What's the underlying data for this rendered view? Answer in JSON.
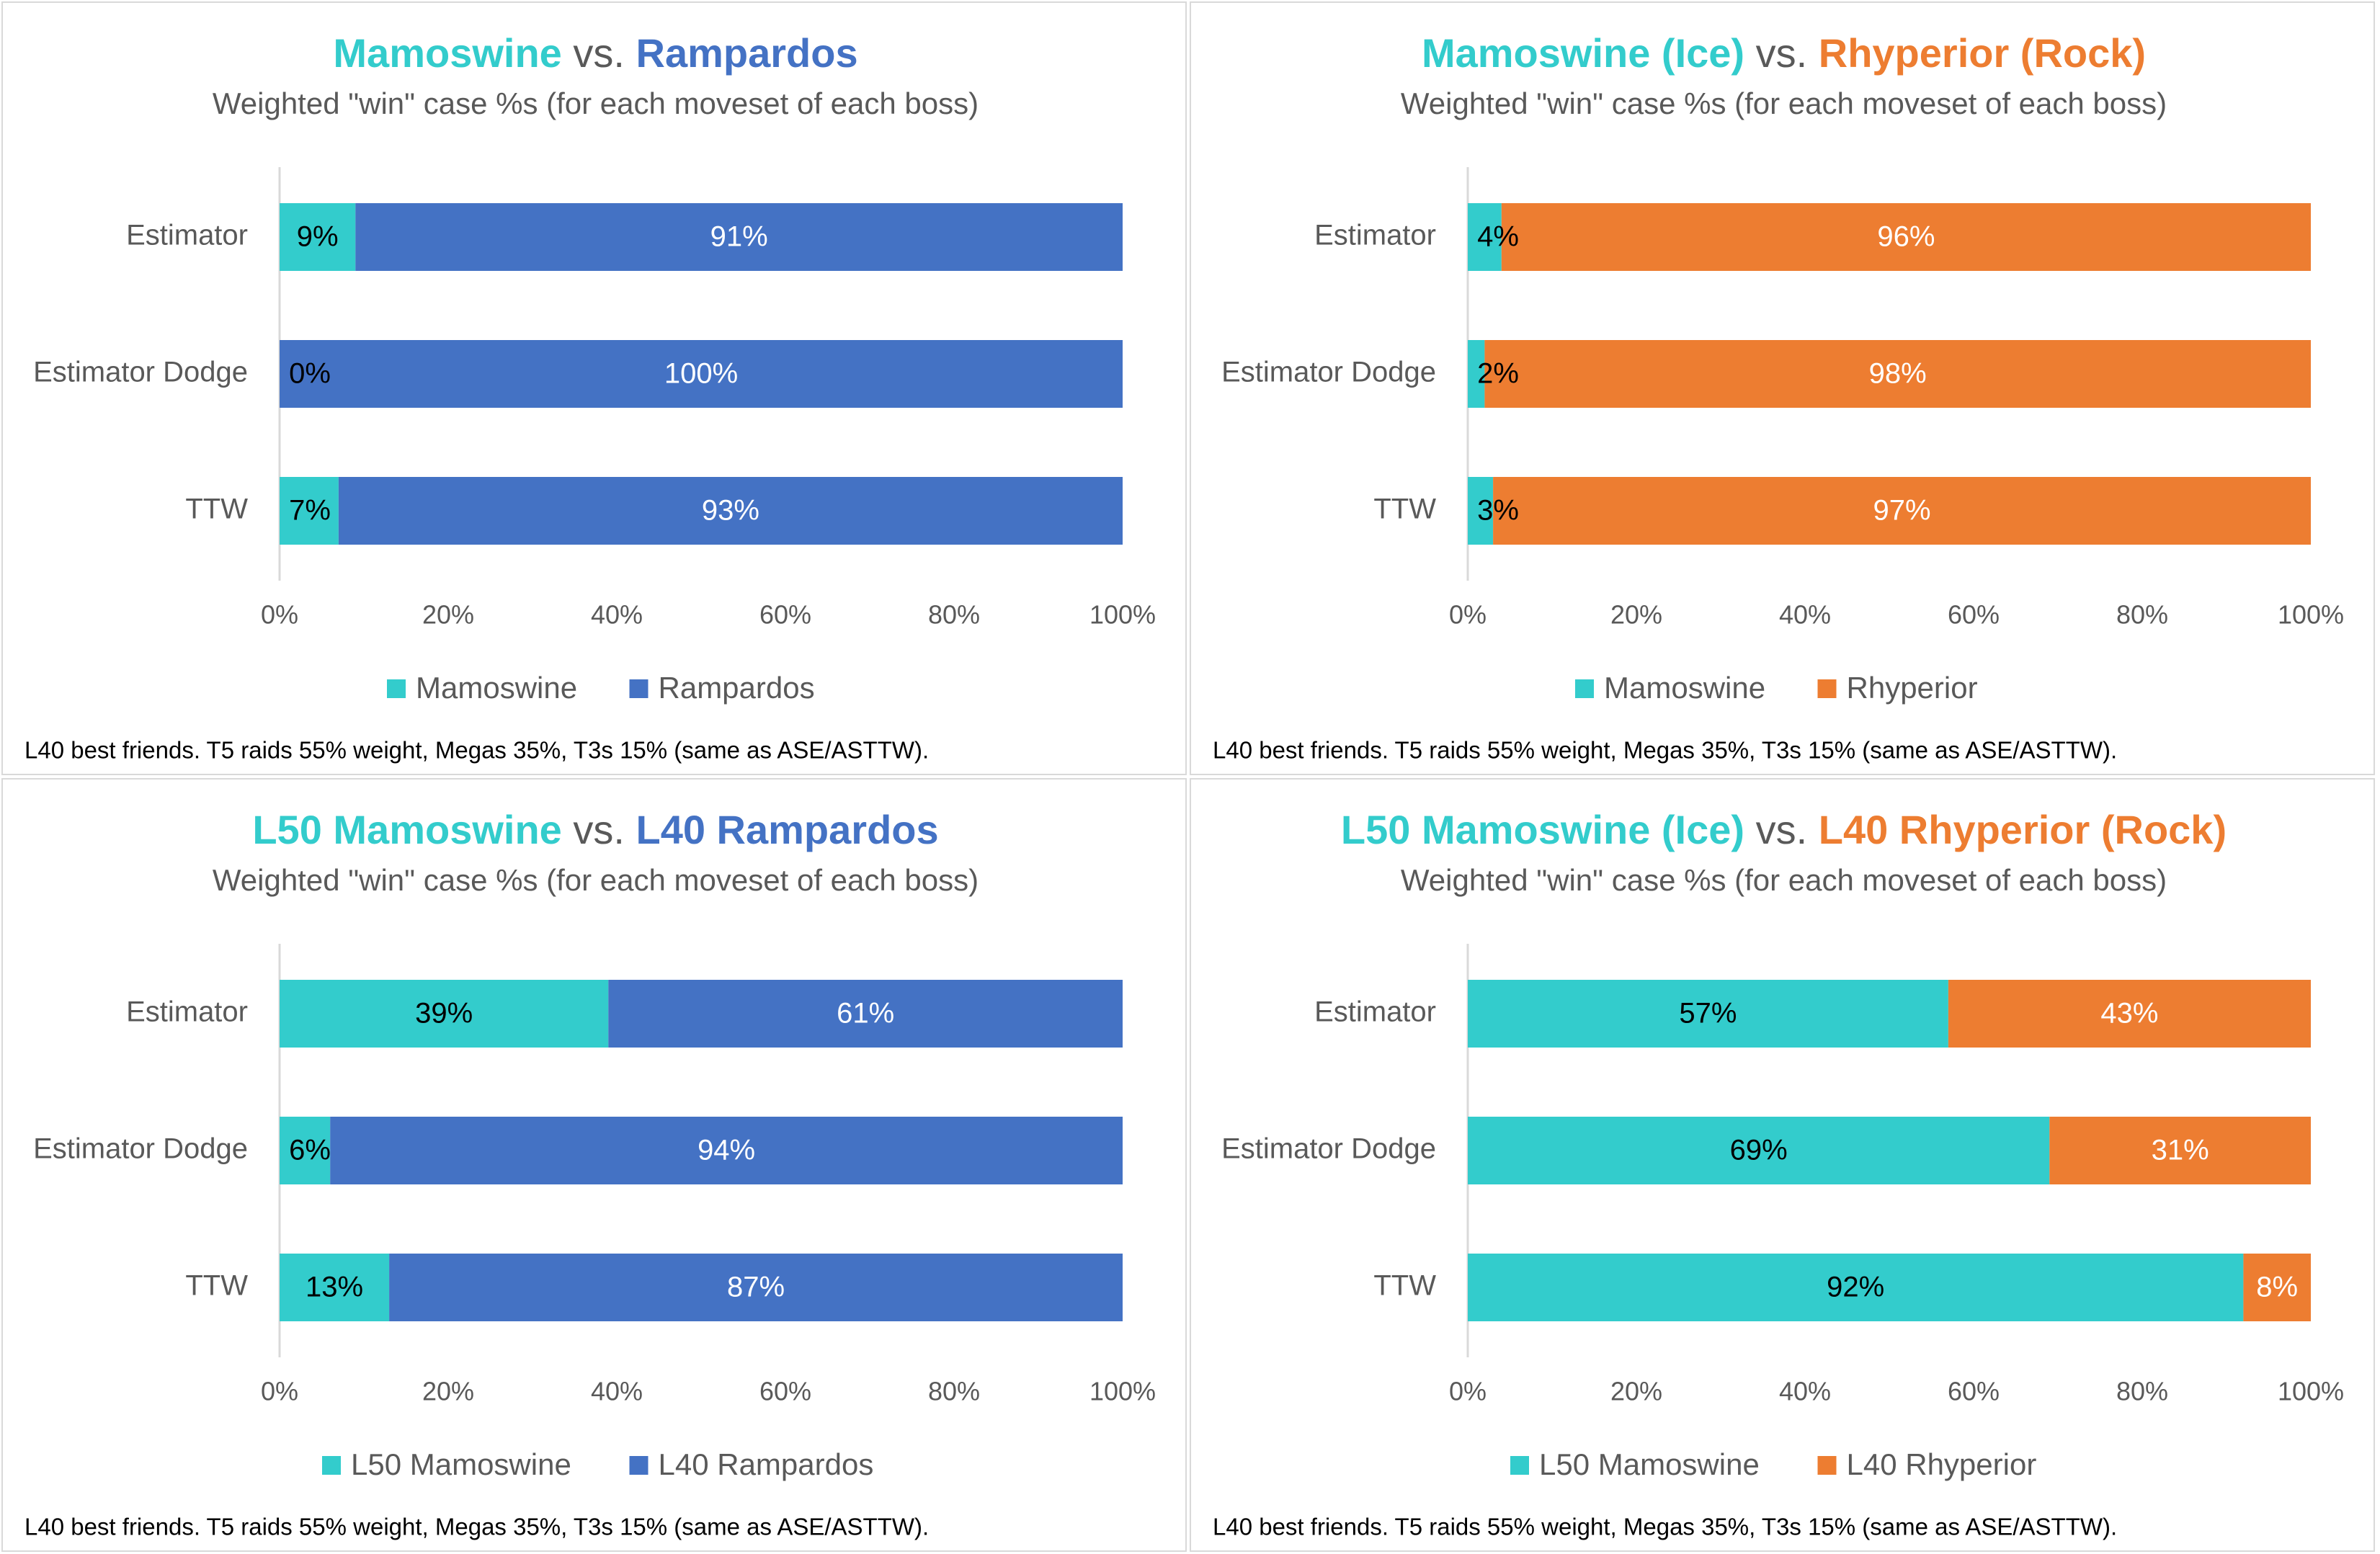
{
  "colors": {
    "teal": "#33CCCC",
    "blue": "#4472C4",
    "orange": "#ED7D31",
    "vs_gray": "#595959",
    "subtitle_gray": "#595959",
    "axis_text": "#595959",
    "grid": "#D9D9D9"
  },
  "chart_data": [
    {
      "type": "bar",
      "orientation": "horizontal",
      "stacked": "100%",
      "title_parts": [
        {
          "text": "Mamoswine",
          "color": "#33CCCC"
        },
        {
          "text": " vs. ",
          "color": "#595959"
        },
        {
          "text": "Rampardos",
          "color": "#4472C4"
        }
      ],
      "subtitle": "Weighted \"win\" case %s (for each moveset of each boss)",
      "categories": [
        "Estimator",
        "Estimator Dodge",
        "TTW"
      ],
      "series": [
        {
          "name": "Mamoswine",
          "color": "#33CCCC",
          "values": [
            9,
            0,
            7
          ],
          "labels": [
            "9%",
            "0%",
            "7%"
          ],
          "label_color": "#000000"
        },
        {
          "name": "Rampardos",
          "color": "#4472C4",
          "values": [
            91,
            100,
            93
          ],
          "labels": [
            "91%",
            "100%",
            "93%"
          ],
          "label_color": "#FFFFFF"
        }
      ],
      "xlim": [
        0,
        100
      ],
      "xticks": [
        "0%",
        "20%",
        "40%",
        "60%",
        "80%",
        "100%"
      ],
      "legend_position": "bottom",
      "footnote": "L40 best friends. T5 raids 55% weight, Megas 35%, T3s 15% (same as ASE/ASTTW)."
    },
    {
      "type": "bar",
      "orientation": "horizontal",
      "stacked": "100%",
      "title_parts": [
        {
          "text": "Mamoswine (Ice)",
          "color": "#33CCCC"
        },
        {
          "text": " vs. ",
          "color": "#595959"
        },
        {
          "text": "Rhyperior (Rock)",
          "color": "#ED7D31"
        }
      ],
      "subtitle": "Weighted \"win\" case %s (for each moveset of each boss)",
      "categories": [
        "Estimator",
        "Estimator Dodge",
        "TTW"
      ],
      "series": [
        {
          "name": "Mamoswine",
          "color": "#33CCCC",
          "values": [
            4,
            2,
            3
          ],
          "labels": [
            "4%",
            "2%",
            "3%"
          ],
          "label_color": "#000000"
        },
        {
          "name": "Rhyperior",
          "color": "#ED7D31",
          "values": [
            96,
            98,
            97
          ],
          "labels": [
            "96%",
            "98%",
            "97%"
          ],
          "label_color": "#FFFFFF"
        }
      ],
      "xlim": [
        0,
        100
      ],
      "xticks": [
        "0%",
        "20%",
        "40%",
        "60%",
        "80%",
        "100%"
      ],
      "legend_position": "bottom",
      "footnote": "L40 best friends. T5 raids 55% weight, Megas 35%, T3s 15% (same as ASE/ASTTW)."
    },
    {
      "type": "bar",
      "orientation": "horizontal",
      "stacked": "100%",
      "title_parts": [
        {
          "text": "L50 Mamoswine",
          "color": "#33CCCC"
        },
        {
          "text": " vs. ",
          "color": "#595959"
        },
        {
          "text": "L40 Rampardos",
          "color": "#4472C4"
        }
      ],
      "subtitle": "Weighted \"win\" case %s (for each moveset of each boss)",
      "categories": [
        "Estimator",
        "Estimator Dodge",
        "TTW"
      ],
      "series": [
        {
          "name": "L50 Mamoswine",
          "color": "#33CCCC",
          "values": [
            39,
            6,
            13
          ],
          "labels": [
            "39%",
            "6%",
            "13%"
          ],
          "label_color": "#000000"
        },
        {
          "name": "L40 Rampardos",
          "color": "#4472C4",
          "values": [
            61,
            94,
            87
          ],
          "labels": [
            "61%",
            "94%",
            "87%"
          ],
          "label_color": "#FFFFFF"
        }
      ],
      "xlim": [
        0,
        100
      ],
      "xticks": [
        "0%",
        "20%",
        "40%",
        "60%",
        "80%",
        "100%"
      ],
      "legend_position": "bottom",
      "footnote": "L40 best friends. T5 raids 55% weight, Megas 35%, T3s 15% (same as ASE/ASTTW)."
    },
    {
      "type": "bar",
      "orientation": "horizontal",
      "stacked": "100%",
      "title_parts": [
        {
          "text": "L50 Mamoswine (Ice)",
          "color": "#33CCCC"
        },
        {
          "text": " vs. ",
          "color": "#595959"
        },
        {
          "text": "L40 Rhyperior (Rock)",
          "color": "#ED7D31"
        }
      ],
      "subtitle": "Weighted \"win\" case %s (for each moveset of each boss)",
      "categories": [
        "Estimator",
        "Estimator Dodge",
        "TTW"
      ],
      "series": [
        {
          "name": "L50 Mamoswine",
          "color": "#33CCCC",
          "values": [
            57,
            69,
            92
          ],
          "labels": [
            "57%",
            "69%",
            "92%"
          ],
          "label_color": "#000000"
        },
        {
          "name": "L40 Rhyperior",
          "color": "#ED7D31",
          "values": [
            43,
            31,
            8
          ],
          "labels": [
            "43%",
            "31%",
            "8%"
          ],
          "label_color": "#FFFFFF"
        }
      ],
      "xlim": [
        0,
        100
      ],
      "xticks": [
        "0%",
        "20%",
        "40%",
        "60%",
        "80%",
        "100%"
      ],
      "legend_position": "bottom",
      "footnote": "L40 best friends. T5 raids 55% weight, Megas 35%, T3s 15% (same as ASE/ASTTW)."
    }
  ]
}
